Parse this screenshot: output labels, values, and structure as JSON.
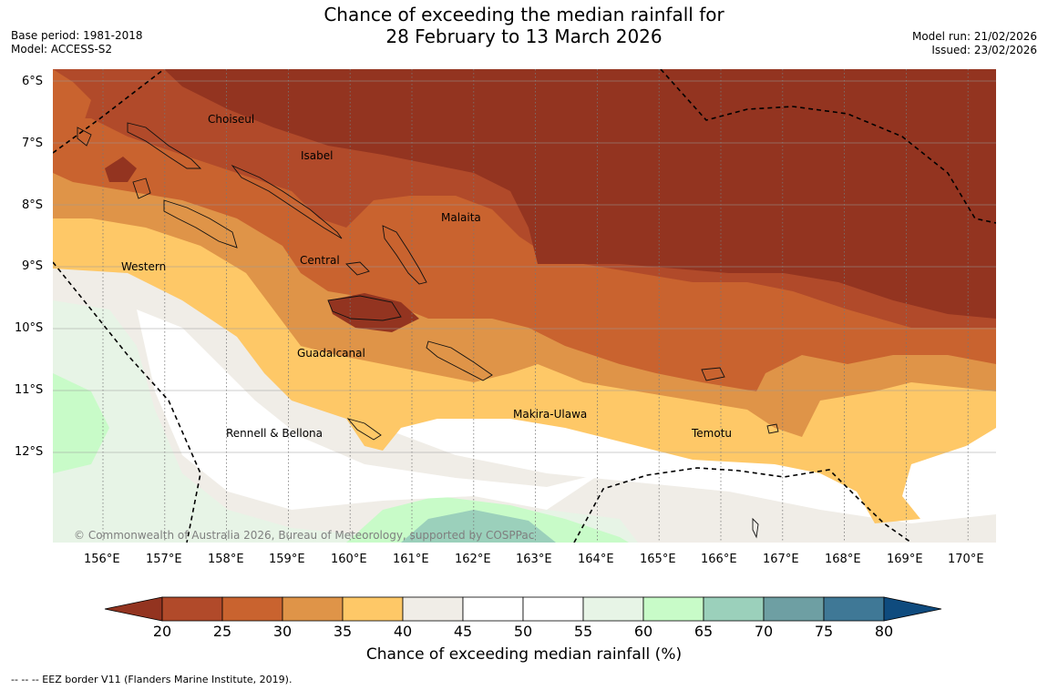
{
  "header": {
    "title_line1": "Chance of exceeding the median rainfall for",
    "title_line2": "28 February to 13 March 2026",
    "base_period": "Base period: 1981-2018",
    "model": "Model: ACCESS-S2",
    "model_run": "Model run: 21/02/2026",
    "issued": "Issued: 23/02/2026"
  },
  "map": {
    "lat_labels": [
      "6°S",
      "7°S",
      "8°S",
      "9°S",
      "10°S",
      "11°S",
      "12°S"
    ],
    "lon_labels": [
      "156°E",
      "157°E",
      "158°E",
      "159°E",
      "160°E",
      "161°E",
      "162°E",
      "163°E",
      "164°E",
      "165°E",
      "166°E",
      "167°E",
      "168°E",
      "169°E",
      "170°E"
    ],
    "places": [
      "Choiseul",
      "Isabel",
      "Malaita",
      "Western",
      "Central",
      "Guadalcanal",
      "Makira-Ulawa",
      "Rennell & Bellona",
      "Temotu"
    ],
    "copyright": "© Commonwealth of Australia 2026, Bureau of Meteorology, supported by COSPPac"
  },
  "colorbar": {
    "ticks": [
      "20",
      "25",
      "30",
      "35",
      "40",
      "45",
      "50",
      "55",
      "60",
      "65",
      "70",
      "75",
      "80"
    ],
    "colors": [
      "#933420",
      "#b14a2a",
      "#c9632f",
      "#df9448",
      "#fec867",
      "#f0ede7",
      "#ffffff",
      "#ffffff",
      "#e7f4e6",
      "#c8fbc8",
      "#9bd0bb",
      "#6e9fa3",
      "#3f7896",
      "#0f4b7e"
    ],
    "title": "Chance of exceeding median rainfall (%)"
  },
  "footer": {
    "eez_legend": "--  --  -- EEZ border V11 (Flanders Marine Institute, 2019)."
  }
}
